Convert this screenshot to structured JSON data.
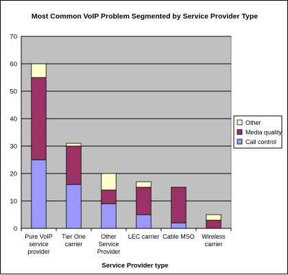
{
  "chart_data": {
    "type": "bar",
    "stacked": true,
    "title": "Most Common VoIP Problem Segmented by Service Provider Type",
    "xlabel": "Service Provider type",
    "ylabel": "",
    "ylim": [
      0,
      70
    ],
    "yticks": [
      0,
      10,
      20,
      30,
      40,
      50,
      60,
      70
    ],
    "grid": true,
    "legend_position": "right",
    "categories": [
      [
        "Pure VoIP",
        "service",
        "provider"
      ],
      [
        "Tier One",
        "carrier"
      ],
      [
        "Other",
        "Service",
        "Provider"
      ],
      [
        "LEC carrier"
      ],
      [
        "Cable MSO"
      ],
      [
        "Wireless",
        "carrier"
      ]
    ],
    "series": [
      {
        "name": "Call control",
        "color": "#9999ff",
        "values": [
          25,
          16,
          9,
          5,
          2,
          0
        ]
      },
      {
        "name": "Media quality",
        "color": "#993366",
        "values": [
          30,
          14,
          5,
          10,
          13,
          3
        ]
      },
      {
        "name": "Other",
        "color": "#ffffcc",
        "values": [
          5,
          1,
          6,
          2,
          0,
          2
        ]
      }
    ],
    "plot_background": "#c0c0c0"
  }
}
